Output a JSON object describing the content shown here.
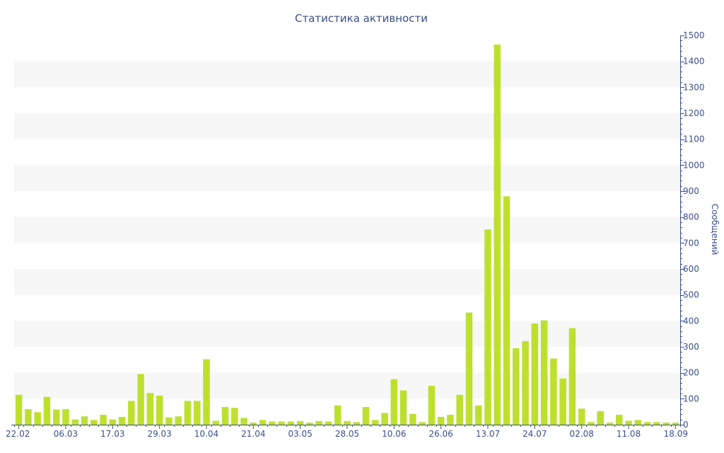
{
  "chart_data": {
    "type": "bar",
    "title": "Статистика активности",
    "xlabel": "",
    "ylabel": "Сообщений",
    "ylim": [
      0,
      1500
    ],
    "y_ticks": [
      0,
      100,
      200,
      300,
      400,
      500,
      600,
      700,
      800,
      900,
      1000,
      1100,
      1200,
      1300,
      1400,
      1500
    ],
    "y_axis_position": "right",
    "grid": "alternating horizontal bands",
    "bar_color": "#bde02f",
    "axis_color": "#3b4f8a",
    "band_color": "#f7f7f7",
    "x_tick_labels": [
      {
        "index": 0,
        "label": "22.02"
      },
      {
        "index": 5,
        "label": "06.03"
      },
      {
        "index": 10,
        "label": "17.03"
      },
      {
        "index": 15,
        "label": "29.03"
      },
      {
        "index": 20,
        "label": "10.04"
      },
      {
        "index": 25,
        "label": "21.04"
      },
      {
        "index": 30,
        "label": "03.05"
      },
      {
        "index": 35,
        "label": "28.05"
      },
      {
        "index": 40,
        "label": "10.06"
      },
      {
        "index": 45,
        "label": "26.06"
      },
      {
        "index": 50,
        "label": "13.07"
      },
      {
        "index": 55,
        "label": "24.07"
      },
      {
        "index": 60,
        "label": "02.08"
      },
      {
        "index": 65,
        "label": "11.08"
      },
      {
        "index": 70,
        "label": "18.09"
      }
    ],
    "values": [
      115,
      60,
      48,
      107,
      58,
      60,
      20,
      32,
      18,
      38,
      20,
      30,
      92,
      195,
      122,
      112,
      28,
      32,
      92,
      92,
      252,
      15,
      68,
      65,
      26,
      8,
      18,
      12,
      12,
      12,
      14,
      8,
      14,
      12,
      74,
      14,
      10,
      68,
      18,
      45,
      175,
      132,
      42,
      10,
      150,
      30,
      38,
      115,
      432,
      74,
      752,
      1465,
      880,
      295,
      322,
      390,
      402,
      255,
      178,
      372,
      62,
      10,
      52,
      8,
      38,
      15,
      18,
      10,
      10,
      8,
      8
    ]
  }
}
